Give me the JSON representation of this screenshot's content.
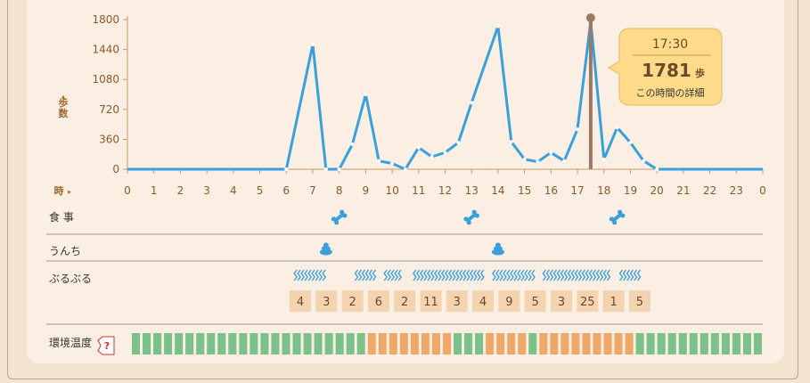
{
  "chart_data": {
    "type": "line",
    "x_ticks": [
      "0",
      "1",
      "2",
      "3",
      "4",
      "5",
      "6",
      "7",
      "8",
      "9",
      "10",
      "11",
      "12",
      "13",
      "14",
      "15",
      "16",
      "17",
      "18",
      "19",
      "20",
      "21",
      "22",
      "23",
      "0"
    ],
    "y_ticks": [
      "1800",
      "1440",
      "1080",
      "720",
      "360",
      "0"
    ],
    "ylim": [
      0,
      1800
    ],
    "ylabel": "歩数",
    "xlabel": "時",
    "x": [
      0,
      0.5,
      1,
      1.5,
      2,
      2.5,
      3,
      3.5,
      4,
      4.5,
      5,
      5.5,
      6,
      7,
      7.5,
      8,
      8.5,
      9,
      9.5,
      10,
      10.5,
      11,
      11.5,
      12,
      12.5,
      13,
      14,
      14.5,
      15,
      15.5,
      16,
      16.5,
      17,
      17.5,
      18,
      18.5,
      19,
      19.5,
      20,
      20.5,
      21,
      21.5,
      22,
      22.5,
      23,
      23.5,
      24
    ],
    "y": [
      0,
      0,
      0,
      0,
      0,
      0,
      0,
      0,
      0,
      0,
      0,
      0,
      0,
      1500,
      0,
      0,
      300,
      900,
      100,
      70,
      0,
      260,
      150,
      200,
      320,
      800,
      1720,
      330,
      120,
      90,
      200,
      100,
      480,
      1781,
      120,
      500,
      320,
      100,
      0,
      0,
      0,
      0,
      0,
      0,
      0,
      0,
      0
    ],
    "series": [
      {
        "values_ref": "y",
        "color": "#3aa0dc"
      }
    ]
  },
  "tooltip": {
    "time": "17:30",
    "value": "1781",
    "unit": "歩",
    "link": "この時間の詳細",
    "hour": 17.5
  },
  "rows": {
    "meal": {
      "label": "食 事",
      "hours": [
        8,
        13,
        18.5
      ]
    },
    "poop": {
      "label": "うんち",
      "hours": [
        7.5,
        14
      ]
    },
    "shake": {
      "label": "ぶるぶる",
      "counts": [
        "4",
        "3",
        "2",
        "6",
        "2",
        "11",
        "3",
        "4",
        "9",
        "5",
        "3",
        "25",
        "1",
        "5"
      ],
      "wave_ranges": [
        [
          6.3,
          7.4
        ],
        [
          8.6,
          9.3
        ],
        [
          9.7,
          10.3
        ],
        [
          10.8,
          13.4
        ],
        [
          13.8,
          15.3
        ],
        [
          15.7,
          18.2
        ],
        [
          18.6,
          19.3
        ]
      ]
    },
    "temperature": {
      "label": "環境温度",
      "help": "?",
      "colors": [
        "#7cc08a",
        "#7cc08a",
        "#7cc08a",
        "#7cc08a",
        "#7cc08a",
        "#7cc08a",
        "#7cc08a",
        "#7cc08a",
        "#7cc08a",
        "#7cc08a",
        "#7cc08a",
        "#7cc08a",
        "#7cc08a",
        "#7cc08a",
        "#7cc08a",
        "#7cc08a",
        "#7cc08a",
        "#7cc08a",
        "#7cc08a",
        "#7cc08a",
        "#7cc08a",
        "#7cc08a",
        "#f0a868",
        "#f0a868",
        "#f0a868",
        "#f0a868",
        "#f0a868",
        "#f0a868",
        "#f0a868",
        "#f0a868",
        "#7cc08a",
        "#7cc08a",
        "#7cc08a",
        "#f0a868",
        "#f0a868",
        "#f0a868",
        "#f0a868",
        "#7cc08a",
        "#f0a868",
        "#f0a868",
        "#f0a868",
        "#f0a868",
        "#f0a868",
        "#f0a868",
        "#f0a868",
        "#f0a868",
        "#f0a868",
        "#7cc08a",
        "#7cc08a",
        "#7cc08a",
        "#7cc08a",
        "#7cc08a",
        "#7cc08a",
        "#7cc08a",
        "#7cc08a",
        "#7cc08a",
        "#7cc08a",
        "#7cc08a",
        "#7cc08a"
      ]
    }
  }
}
